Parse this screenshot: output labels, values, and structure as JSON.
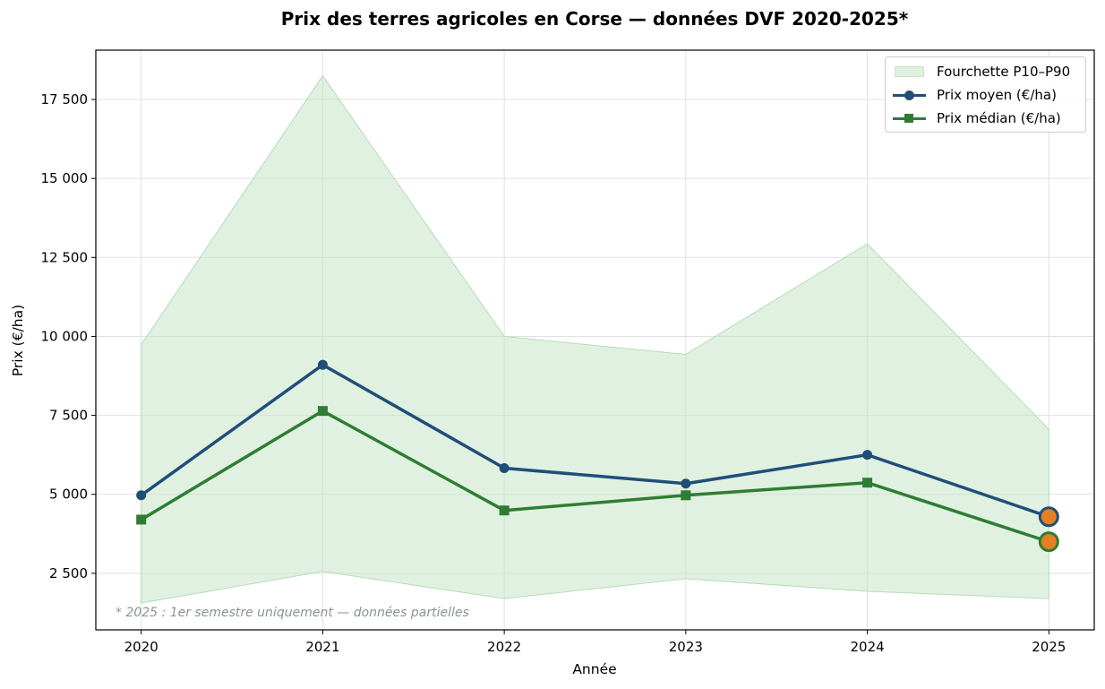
{
  "chart_data": {
    "type": "line",
    "title": "Prix des terres agricoles en Corse — données DVF 2020-2025*",
    "xlabel": "Année",
    "ylabel": "Prix (€/ha)",
    "x": [
      2020,
      2021,
      2022,
      2023,
      2024,
      2025
    ],
    "x_tick_labels": [
      "2020",
      "2021",
      "2022",
      "2023",
      "2024",
      "2025"
    ],
    "y_ticks": [
      2500,
      5000,
      7500,
      10000,
      12500,
      15000,
      17500
    ],
    "y_tick_labels": [
      "2 500",
      "5 000",
      "7 500",
      "10 000",
      "12 500",
      "15 000",
      "17 500"
    ],
    "xlim": [
      2019.75,
      2025.25
    ],
    "ylim": [
      710,
      19060
    ],
    "grid": true,
    "legend_position": "upper right",
    "series": [
      {
        "name": "Fourchette P10–P90",
        "kind": "band",
        "color": "#c8e6c9",
        "lower": [
          1560,
          2560,
          1700,
          2330,
          1930,
          1700
        ],
        "upper": [
          9740,
          18250,
          10000,
          9430,
          12930,
          7060
        ]
      },
      {
        "name": "Prix moyen (€/ha)",
        "kind": "line",
        "marker": "circle",
        "color": "#1f4e79",
        "values": [
          4970,
          9100,
          5830,
          5340,
          6250,
          4290
        ]
      },
      {
        "name": "Prix médian (€/ha)",
        "kind": "line",
        "marker": "square",
        "color": "#2e7d32",
        "values": [
          4200,
          7640,
          4490,
          4970,
          5370,
          3500
        ]
      }
    ],
    "highlight": {
      "x": 2025,
      "color": "#e67e22",
      "note": "partial year"
    },
    "annotations": [
      "* 2025 : 1er semestre uniquement — données partielles"
    ]
  },
  "legend": {
    "items": [
      {
        "label": "Fourchette P10–P90"
      },
      {
        "label": "Prix moyen (€/ha)"
      },
      {
        "label": "Prix médian (€/ha)"
      }
    ]
  },
  "footnote": "* 2025 : 1er semestre uniquement — données partielles",
  "colors": {
    "mean": "#1f4e79",
    "median": "#2e7d32",
    "band": "#c8e6c9",
    "highlight": "#e67e22",
    "footnote": "#8a9494"
  }
}
